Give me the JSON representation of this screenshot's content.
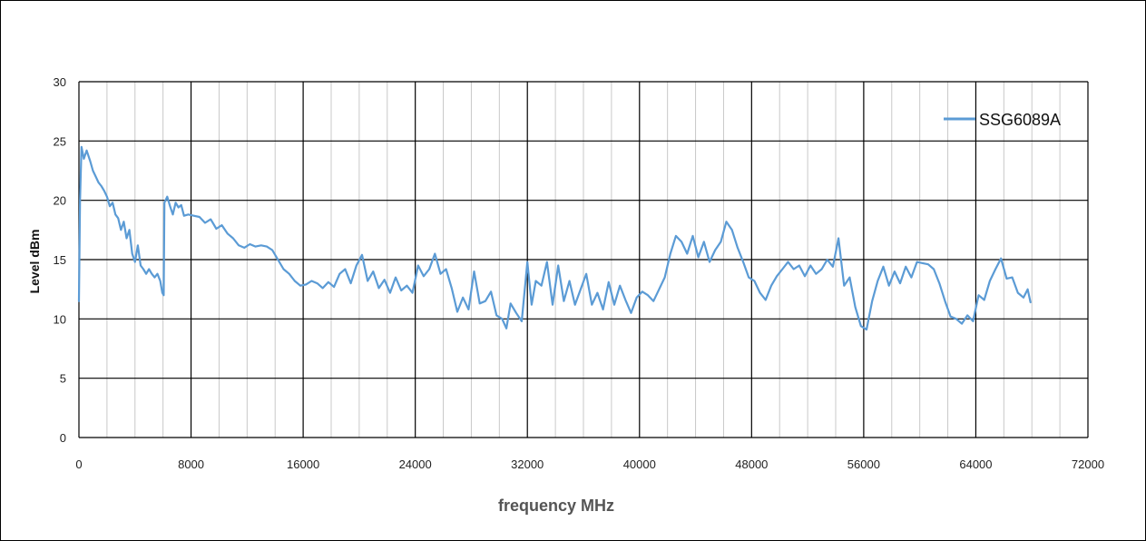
{
  "chart_data": {
    "type": "line",
    "title": "",
    "xlabel": "frequency MHz",
    "ylabel": "Level dBm",
    "xlim": [
      0,
      72000
    ],
    "ylim": [
      0,
      30
    ],
    "x_ticks": [
      "0",
      "8000",
      "16000",
      "24000",
      "32000",
      "40000",
      "48000",
      "56000",
      "64000",
      "72000"
    ],
    "y_ticks": [
      "0",
      "5",
      "10",
      "15",
      "20",
      "25",
      "30"
    ],
    "x_major_step": 8000,
    "x_minor_step": 2000,
    "y_step": 5,
    "grid": true,
    "legend_position": "top-right",
    "series": [
      {
        "name": "SSG6089A",
        "color": "#5b9bd5",
        "points": [
          [
            0,
            11.5
          ],
          [
            80,
            20
          ],
          [
            180,
            24.5
          ],
          [
            350,
            23.5
          ],
          [
            550,
            24.2
          ],
          [
            800,
            23.3
          ],
          [
            1000,
            22.5
          ],
          [
            1200,
            22
          ],
          [
            1400,
            21.5
          ],
          [
            1600,
            21.2
          ],
          [
            1800,
            20.8
          ],
          [
            2000,
            20.3
          ],
          [
            2200,
            19.5
          ],
          [
            2400,
            19.8
          ],
          [
            2600,
            18.8
          ],
          [
            2800,
            18.5
          ],
          [
            3000,
            17.5
          ],
          [
            3200,
            18.2
          ],
          [
            3400,
            16.8
          ],
          [
            3600,
            17.5
          ],
          [
            3800,
            15.5
          ],
          [
            4000,
            14.8
          ],
          [
            4200,
            16.2
          ],
          [
            4400,
            14.5
          ],
          [
            4600,
            14.2
          ],
          [
            4800,
            13.8
          ],
          [
            5000,
            14.2
          ],
          [
            5200,
            13.8
          ],
          [
            5400,
            13.5
          ],
          [
            5600,
            13.8
          ],
          [
            5800,
            13.2
          ],
          [
            5950,
            12.2
          ],
          [
            6050,
            12.0
          ],
          [
            6100,
            19.8
          ],
          [
            6300,
            20.3
          ],
          [
            6500,
            19.5
          ],
          [
            6700,
            18.8
          ],
          [
            6900,
            19.8
          ],
          [
            7100,
            19.4
          ],
          [
            7300,
            19.6
          ],
          [
            7500,
            18.7
          ],
          [
            7800,
            18.8
          ],
          [
            8200,
            18.7
          ],
          [
            8600,
            18.6
          ],
          [
            9000,
            18.1
          ],
          [
            9400,
            18.4
          ],
          [
            9800,
            17.6
          ],
          [
            10200,
            17.9
          ],
          [
            10600,
            17.2
          ],
          [
            11000,
            16.8
          ],
          [
            11400,
            16.2
          ],
          [
            11800,
            16.0
          ],
          [
            12200,
            16.3
          ],
          [
            12600,
            16.1
          ],
          [
            13000,
            16.2
          ],
          [
            13400,
            16.1
          ],
          [
            13800,
            15.8
          ],
          [
            14200,
            15.0
          ],
          [
            14600,
            14.2
          ],
          [
            15000,
            13.8
          ],
          [
            15400,
            13.2
          ],
          [
            15800,
            12.8
          ],
          [
            16200,
            12.9
          ],
          [
            16600,
            13.2
          ],
          [
            17000,
            13.0
          ],
          [
            17400,
            12.6
          ],
          [
            17800,
            13.1
          ],
          [
            18200,
            12.7
          ],
          [
            18600,
            13.8
          ],
          [
            19000,
            14.2
          ],
          [
            19400,
            13.0
          ],
          [
            19800,
            14.5
          ],
          [
            20200,
            15.4
          ],
          [
            20600,
            13.2
          ],
          [
            21000,
            14.0
          ],
          [
            21400,
            12.6
          ],
          [
            21800,
            13.3
          ],
          [
            22200,
            12.2
          ],
          [
            22600,
            13.5
          ],
          [
            23000,
            12.4
          ],
          [
            23400,
            12.8
          ],
          [
            23800,
            12.2
          ],
          [
            24200,
            14.5
          ],
          [
            24600,
            13.6
          ],
          [
            25000,
            14.2
          ],
          [
            25400,
            15.5
          ],
          [
            25800,
            13.8
          ],
          [
            26200,
            14.2
          ],
          [
            26600,
            12.6
          ],
          [
            27000,
            10.6
          ],
          [
            27400,
            11.8
          ],
          [
            27800,
            10.8
          ],
          [
            28200,
            14.0
          ],
          [
            28600,
            11.3
          ],
          [
            29000,
            11.5
          ],
          [
            29400,
            12.3
          ],
          [
            29800,
            10.3
          ],
          [
            30200,
            10.0
          ],
          [
            30500,
            9.2
          ],
          [
            30800,
            11.3
          ],
          [
            31200,
            10.5
          ],
          [
            31600,
            9.8
          ],
          [
            32000,
            14.8
          ],
          [
            32300,
            11.2
          ],
          [
            32600,
            13.2
          ],
          [
            33000,
            12.8
          ],
          [
            33400,
            14.8
          ],
          [
            33800,
            11.2
          ],
          [
            34200,
            14.5
          ],
          [
            34600,
            11.5
          ],
          [
            35000,
            13.2
          ],
          [
            35400,
            11.2
          ],
          [
            35800,
            12.5
          ],
          [
            36200,
            13.8
          ],
          [
            36600,
            11.2
          ],
          [
            37000,
            12.2
          ],
          [
            37400,
            10.8
          ],
          [
            37800,
            13.1
          ],
          [
            38200,
            11.2
          ],
          [
            38600,
            12.8
          ],
          [
            39000,
            11.6
          ],
          [
            39400,
            10.5
          ],
          [
            39800,
            11.8
          ],
          [
            40200,
            12.3
          ],
          [
            40600,
            12.0
          ],
          [
            41000,
            11.5
          ],
          [
            41400,
            12.5
          ],
          [
            41800,
            13.5
          ],
          [
            42200,
            15.5
          ],
          [
            42600,
            17.0
          ],
          [
            43000,
            16.5
          ],
          [
            43400,
            15.5
          ],
          [
            43800,
            17.0
          ],
          [
            44200,
            15.2
          ],
          [
            44600,
            16.5
          ],
          [
            45000,
            14.8
          ],
          [
            45400,
            15.8
          ],
          [
            45800,
            16.5
          ],
          [
            46200,
            18.2
          ],
          [
            46600,
            17.5
          ],
          [
            47000,
            16.0
          ],
          [
            47400,
            14.8
          ],
          [
            47800,
            13.5
          ],
          [
            48200,
            13.2
          ],
          [
            48600,
            12.2
          ],
          [
            49000,
            11.6
          ],
          [
            49400,
            12.8
          ],
          [
            49800,
            13.6
          ],
          [
            50200,
            14.2
          ],
          [
            50600,
            14.8
          ],
          [
            51000,
            14.2
          ],
          [
            51400,
            14.5
          ],
          [
            51800,
            13.6
          ],
          [
            52200,
            14.5
          ],
          [
            52600,
            13.8
          ],
          [
            53000,
            14.2
          ],
          [
            53400,
            15.0
          ],
          [
            53800,
            14.4
          ],
          [
            54200,
            16.8
          ],
          [
            54600,
            12.8
          ],
          [
            55000,
            13.5
          ],
          [
            55400,
            11.0
          ],
          [
            55800,
            9.4
          ],
          [
            56200,
            9.1
          ],
          [
            56600,
            11.5
          ],
          [
            57000,
            13.2
          ],
          [
            57400,
            14.4
          ],
          [
            57800,
            12.8
          ],
          [
            58200,
            14.0
          ],
          [
            58600,
            13.0
          ],
          [
            59000,
            14.4
          ],
          [
            59400,
            13.5
          ],
          [
            59800,
            14.8
          ],
          [
            60200,
            14.7
          ],
          [
            60600,
            14.6
          ],
          [
            61000,
            14.2
          ],
          [
            61400,
            13.0
          ],
          [
            61800,
            11.5
          ],
          [
            62200,
            10.2
          ],
          [
            62600,
            10.0
          ],
          [
            63000,
            9.6
          ],
          [
            63400,
            10.3
          ],
          [
            63800,
            9.8
          ],
          [
            64200,
            12.0
          ],
          [
            64600,
            11.6
          ],
          [
            65000,
            13.2
          ],
          [
            65400,
            14.2
          ],
          [
            65800,
            15.1
          ],
          [
            66200,
            13.4
          ],
          [
            66600,
            13.5
          ],
          [
            67000,
            12.2
          ],
          [
            67400,
            11.8
          ],
          [
            67700,
            12.5
          ],
          [
            67900,
            11.4
          ]
        ]
      }
    ]
  }
}
